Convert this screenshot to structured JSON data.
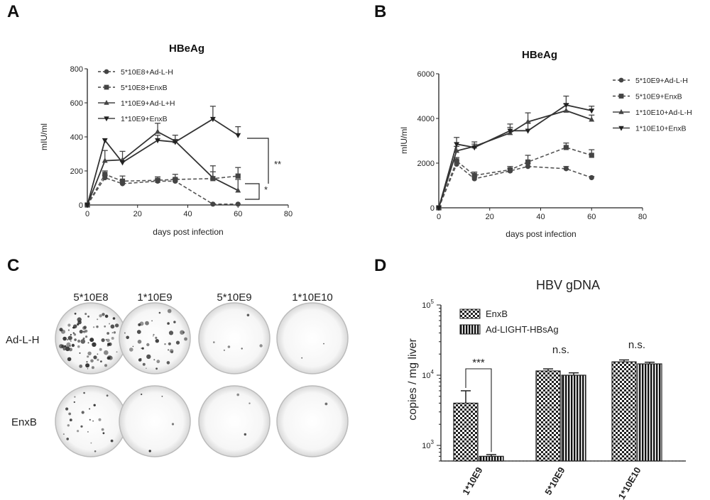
{
  "panels": {
    "A": {
      "letter": "A"
    },
    "B": {
      "letter": "B"
    },
    "C": {
      "letter": "C",
      "columns": [
        "5*10E8",
        "1*10E9",
        "5*10E9",
        "1*10E10"
      ],
      "rows": [
        "Ad-L-H",
        "EnxB"
      ]
    },
    "D": {
      "letter": "D"
    }
  },
  "chart_data": [
    {
      "panel": "A",
      "type": "line",
      "title": "HBeAg",
      "xlabel": "days post infection",
      "ylabel": "mIU/ml",
      "xlim": [
        0,
        80
      ],
      "ylim": [
        0,
        800
      ],
      "xticks": [
        "0",
        "20",
        "40",
        "60",
        "80"
      ],
      "yticks": [
        "0",
        "200",
        "400",
        "600",
        "800"
      ],
      "legend_position": "top-left",
      "series": [
        {
          "name": "5*10E8+Ad-L-H",
          "style": "dashed",
          "marker": "circle",
          "x": [
            0,
            7,
            14,
            28,
            35,
            50,
            60
          ],
          "values": [
            0,
            160,
            125,
            140,
            140,
            5,
            5
          ],
          "errors": [
            0,
            15,
            15,
            12,
            15,
            0,
            0
          ]
        },
        {
          "name": "5*10E8+EnxB",
          "style": "dashed",
          "marker": "square",
          "x": [
            0,
            7,
            14,
            28,
            35,
            50,
            60
          ],
          "values": [
            0,
            180,
            140,
            145,
            150,
            155,
            170
          ],
          "errors": [
            0,
            20,
            30,
            20,
            30,
            40,
            50
          ]
        },
        {
          "name": "1*10E9+Ad-L+H",
          "style": "solid",
          "marker": "triangle",
          "x": [
            0,
            7,
            14,
            28,
            35,
            50,
            60
          ],
          "values": [
            0,
            260,
            265,
            430,
            375,
            160,
            85
          ],
          "errors": [
            0,
            60,
            50,
            50,
            35,
            70,
            65
          ]
        },
        {
          "name": "1*10E9+EnxB",
          "style": "solid",
          "marker": "triangle-down",
          "x": [
            0,
            7,
            14,
            28,
            35,
            50,
            60
          ],
          "values": [
            0,
            380,
            250,
            380,
            370,
            505,
            410
          ],
          "errors": [
            0,
            0,
            0,
            30,
            15,
            75,
            50
          ]
        }
      ],
      "annotations": [
        "**",
        "*"
      ]
    },
    {
      "panel": "B",
      "type": "line",
      "title": "HBeAg",
      "xlabel": "days post infection",
      "ylabel": "mIU/ml",
      "xlim": [
        0,
        80
      ],
      "ylim": [
        0,
        6000
      ],
      "xticks": [
        "0",
        "20",
        "40",
        "60",
        "80"
      ],
      "yticks": [
        "0",
        "2000",
        "4000",
        "6000"
      ],
      "legend_position": "right",
      "series": [
        {
          "name": "5*10E9+Ad-L-H",
          "style": "dashed",
          "marker": "circle",
          "x": [
            0,
            7,
            14,
            28,
            35,
            50,
            60
          ],
          "values": [
            0,
            1950,
            1300,
            1650,
            1850,
            1750,
            1350
          ],
          "errors": [
            0,
            150,
            100,
            100,
            150,
            100,
            50
          ]
        },
        {
          "name": "5*10E9+EnxB",
          "style": "dashed",
          "marker": "square",
          "x": [
            0,
            7,
            14,
            28,
            35,
            50,
            60
          ],
          "values": [
            0,
            2100,
            1450,
            1700,
            2050,
            2700,
            2350
          ],
          "errors": [
            0,
            150,
            150,
            150,
            300,
            200,
            250
          ]
        },
        {
          "name": "1*10E10+Ad-L-H",
          "style": "solid",
          "marker": "triangle",
          "x": [
            0,
            7,
            14,
            28,
            35,
            50,
            60
          ],
          "values": [
            0,
            2550,
            2750,
            3350,
            3850,
            4350,
            3950
          ],
          "errors": [
            0,
            200,
            200,
            250,
            400,
            300,
            200
          ]
        },
        {
          "name": "1*10E10+EnxB",
          "style": "solid",
          "marker": "triangle-down",
          "x": [
            0,
            7,
            14,
            28,
            35,
            50,
            60
          ],
          "values": [
            0,
            2850,
            2700,
            3450,
            3450,
            4600,
            4350
          ],
          "errors": [
            0,
            300,
            150,
            300,
            350,
            400,
            200
          ]
        }
      ]
    },
    {
      "panel": "D",
      "type": "bar",
      "title": "HBV gDNA",
      "xlabel": "",
      "ylabel": "copies / mg liver",
      "yscale": "log",
      "ylim": [
        600,
        100000
      ],
      "categories": [
        "1*10E9",
        "5*10E9",
        "1*10E10"
      ],
      "series": [
        {
          "name": "EnxB",
          "pattern": "checker",
          "values": [
            4000,
            11500,
            15500
          ],
          "errors": [
            2000,
            800,
            1000
          ]
        },
        {
          "name": "Ad-LIGHT-HBsAg",
          "pattern": "vertical-stripes",
          "values": [
            700,
            10000,
            14500
          ],
          "errors": [
            40,
            800,
            800
          ]
        }
      ],
      "detection_limit": 600,
      "significance": [
        "***",
        "n.s.",
        "n.s."
      ],
      "legend_position": "top-left"
    }
  ]
}
